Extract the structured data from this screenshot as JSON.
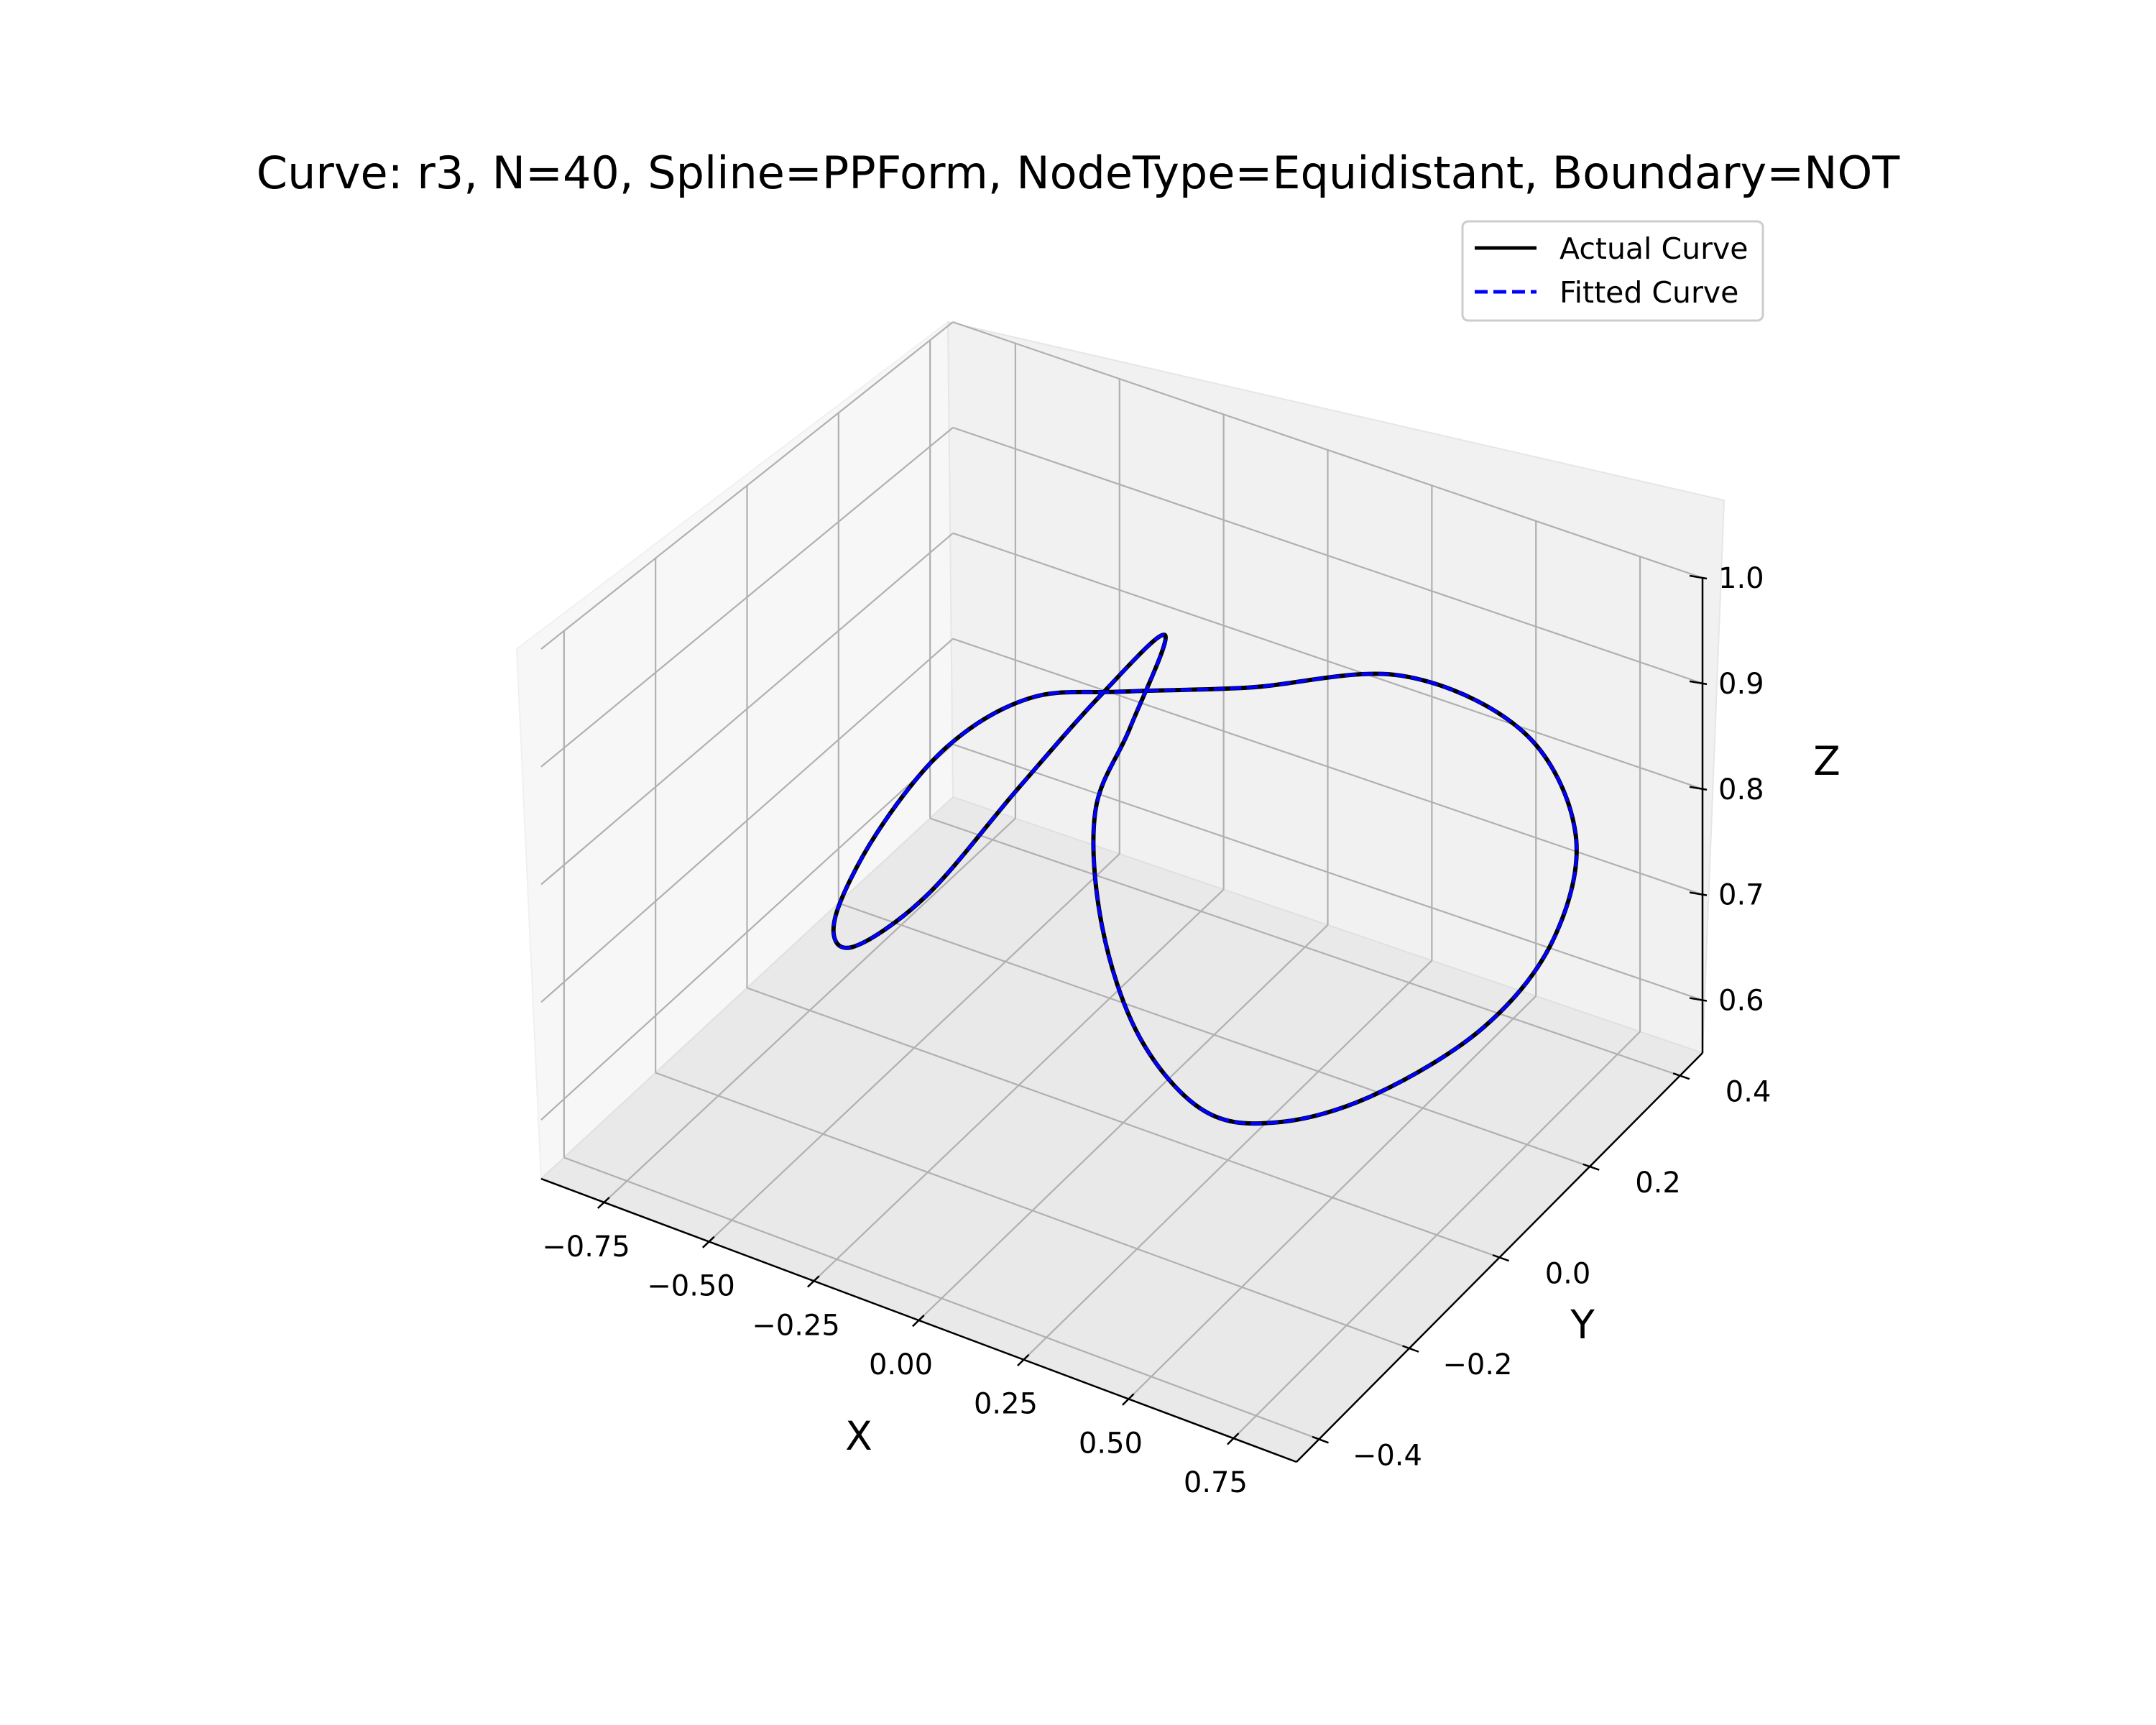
{
  "chart_data": {
    "type": "line",
    "projection": "3d",
    "title": "Curve: r3, N=40, Spline=PPForm, NodeType=Equidistant, Boundary=NOT",
    "xlabel": "X",
    "ylabel": "Y",
    "zlabel": "Z",
    "xlim": [
      -0.9,
      0.9
    ],
    "ylim": [
      -0.45,
      0.45
    ],
    "zlim": [
      0.55,
      1.0
    ],
    "x_ticks": [
      "−0.75",
      "−0.50",
      "−0.25",
      "0.00",
      "0.25",
      "0.50",
      "0.75"
    ],
    "y_ticks": [
      "−0.4",
      "−0.2",
      "0.0",
      "0.2",
      "0.4"
    ],
    "z_ticks": [
      "0.6",
      "0.7",
      "0.8",
      "0.9",
      "1.0"
    ],
    "grid": true,
    "legend": {
      "location": "upper-right",
      "entries": [
        "Actual Curve",
        "Fitted Curve"
      ]
    },
    "series": [
      {
        "name": "Actual Curve",
        "color": "#000000",
        "style": "solid",
        "points": [
          [
            0.3,
            -0.1,
            0.64
          ],
          [
            0.37,
            0.0,
            0.6
          ],
          [
            0.45,
            0.14,
            0.58
          ],
          [
            0.56,
            0.28,
            0.6
          ],
          [
            0.64,
            0.36,
            0.66
          ],
          [
            0.66,
            0.39,
            0.75
          ],
          [
            0.6,
            0.33,
            0.86
          ],
          [
            0.47,
            0.18,
            0.95
          ],
          [
            0.3,
            0.0,
            0.98
          ],
          [
            0.05,
            -0.05,
            0.96
          ],
          [
            -0.18,
            -0.04,
            0.92
          ],
          [
            -0.4,
            -0.02,
            0.84
          ],
          [
            -0.59,
            0.0,
            0.73
          ],
          [
            -0.69,
            0.0,
            0.64
          ],
          [
            -0.65,
            0.0,
            0.62
          ],
          [
            -0.45,
            -0.02,
            0.7
          ],
          [
            -0.22,
            -0.03,
            0.83
          ],
          [
            0.0,
            -0.05,
            0.95
          ],
          [
            0.1,
            0.0,
            1.0
          ],
          [
            0.07,
            -0.05,
            0.93
          ],
          [
            0.02,
            -0.08,
            0.86
          ],
          [
            0.08,
            -0.12,
            0.78
          ],
          [
            0.18,
            -0.13,
            0.7
          ],
          [
            0.3,
            -0.1,
            0.64
          ]
        ]
      },
      {
        "name": "Fitted Curve",
        "color": "#0000ff",
        "style": "dashed",
        "points": [
          [
            0.3,
            -0.1,
            0.64
          ],
          [
            0.37,
            0.0,
            0.6
          ],
          [
            0.45,
            0.14,
            0.58
          ],
          [
            0.56,
            0.28,
            0.6
          ],
          [
            0.64,
            0.36,
            0.66
          ],
          [
            0.66,
            0.39,
            0.75
          ],
          [
            0.6,
            0.33,
            0.86
          ],
          [
            0.47,
            0.18,
            0.95
          ],
          [
            0.3,
            0.0,
            0.98
          ],
          [
            0.05,
            -0.05,
            0.96
          ],
          [
            -0.18,
            -0.04,
            0.92
          ],
          [
            -0.4,
            -0.02,
            0.84
          ],
          [
            -0.59,
            0.0,
            0.73
          ],
          [
            -0.69,
            0.0,
            0.64
          ],
          [
            -0.65,
            0.0,
            0.62
          ],
          [
            -0.45,
            -0.02,
            0.7
          ],
          [
            -0.22,
            -0.03,
            0.83
          ],
          [
            0.0,
            -0.05,
            0.95
          ],
          [
            0.1,
            0.0,
            1.0
          ],
          [
            0.07,
            -0.05,
            0.93
          ],
          [
            0.02,
            -0.08,
            0.86
          ],
          [
            0.08,
            -0.12,
            0.78
          ],
          [
            0.18,
            -0.13,
            0.7
          ],
          [
            0.3,
            -0.1,
            0.64
          ]
        ]
      }
    ]
  }
}
